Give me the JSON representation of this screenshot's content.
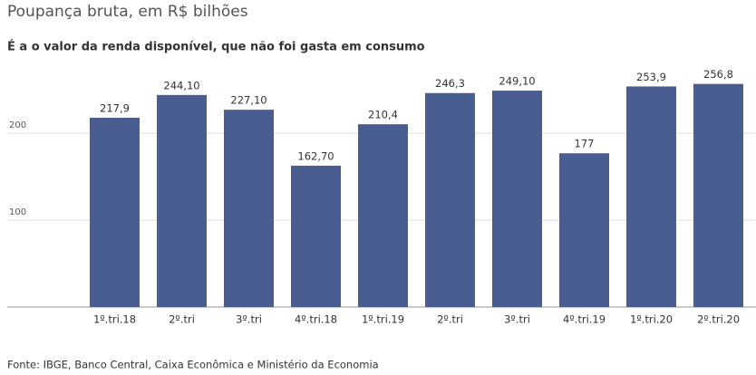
{
  "chart_data": {
    "type": "bar",
    "title": "Poupança bruta, em R$ bilhões",
    "subtitle": "É a o valor da renda disponível, que não foi gasta em consumo",
    "categories": [
      "1º.tri.18",
      "2º.tri",
      "3º.tri",
      "4º.tri.18",
      "1º.tri.19",
      "2º.tri",
      "3º.tri",
      "4º.tri.19",
      "1º.tri.20",
      "2º.tri.20"
    ],
    "values": [
      217.9,
      244.1,
      227.1,
      162.7,
      210.4,
      246.3,
      249.1,
      177,
      253.9,
      256.8
    ],
    "value_labels": [
      "217,9",
      "244,10",
      "227,10",
      "162,70",
      "210,4",
      "246,3",
      "249,10",
      "177",
      "253,9",
      "256,8"
    ],
    "color": "#4a5d91",
    "ylim": [
      0,
      270
    ],
    "yticks": [
      100,
      200
    ],
    "grid": true,
    "source": "Fonte: IBGE, Banco Central, Caixa Econômica e Ministério da Economia"
  }
}
